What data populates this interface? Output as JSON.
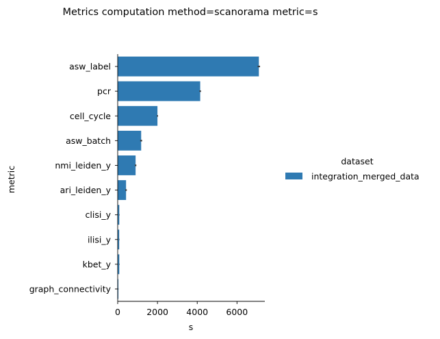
{
  "chart_data": {
    "type": "bar",
    "orientation": "horizontal",
    "title": "Metrics computation method=scanorama metric=s",
    "xlabel": "s",
    "ylabel": "metric",
    "xlim": [
      0,
      7400
    ],
    "xticks": [
      0,
      2000,
      4000,
      6000
    ],
    "xtick_labels": [
      "0",
      "2000",
      "4000",
      "6000"
    ],
    "categories": [
      "asw_label",
      "pcr",
      "cell_cycle",
      "asw_batch",
      "nmi_leiden_y",
      "ari_leiden_y",
      "clisi_y",
      "ilisi_y",
      "kbet_y",
      "graph_connectivity"
    ],
    "series": [
      {
        "name": "integration_merged_data",
        "color": "#2f7ab2",
        "values": [
          7100,
          4150,
          2000,
          1180,
          900,
          420,
          80,
          75,
          80,
          35
        ],
        "error": [
          60,
          40,
          30,
          50,
          40,
          40,
          10,
          10,
          10,
          5
        ]
      }
    ],
    "legend": {
      "title": "dataset",
      "placement": "right"
    },
    "grid": false
  }
}
